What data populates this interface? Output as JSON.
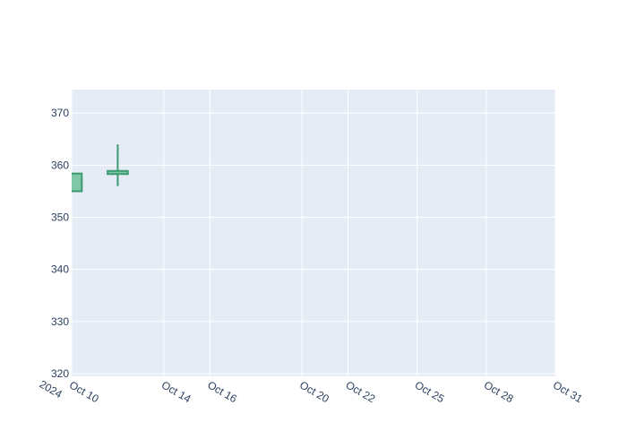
{
  "chart_data": {
    "type": "candlestick",
    "title": "",
    "xlabel": "",
    "ylabel": "",
    "x_range": [
      "2024-10-10",
      "2024-10-31"
    ],
    "ylim": [
      319.5,
      374.5
    ],
    "y_ticks": [
      320,
      330,
      340,
      350,
      360,
      370
    ],
    "y_tick_labels": [
      "320",
      "330",
      "340",
      "350",
      "360",
      "370"
    ],
    "x_ticks": [
      {
        "date": "2024-10-10",
        "label": "Oct 10",
        "sublabel": "2024"
      },
      {
        "date": "2024-10-14",
        "label": "Oct 14"
      },
      {
        "date": "2024-10-16",
        "label": "Oct 16"
      },
      {
        "date": "2024-10-20",
        "label": "Oct 20"
      },
      {
        "date": "2024-10-22",
        "label": "Oct 22"
      },
      {
        "date": "2024-10-25",
        "label": "Oct 25"
      },
      {
        "date": "2024-10-28",
        "label": "Oct 28"
      },
      {
        "date": "2024-10-31",
        "label": "Oct 31"
      }
    ],
    "candles": [
      {
        "date": "2024-10-10",
        "open": 355.0,
        "high": 358.5,
        "low": 355.0,
        "close": 358.4
      },
      {
        "date": "2024-10-12",
        "open": 358.3,
        "high": 364.0,
        "low": 356.0,
        "close": 358.9
      }
    ],
    "grid": true,
    "legend": "none"
  },
  "colors": {
    "plot_background": "#e5ecf6",
    "grid": "#ffffff",
    "increasing": "#3d9970",
    "increasing_fill": "#7fc7a6",
    "tick_text": "#2a3f5f"
  }
}
